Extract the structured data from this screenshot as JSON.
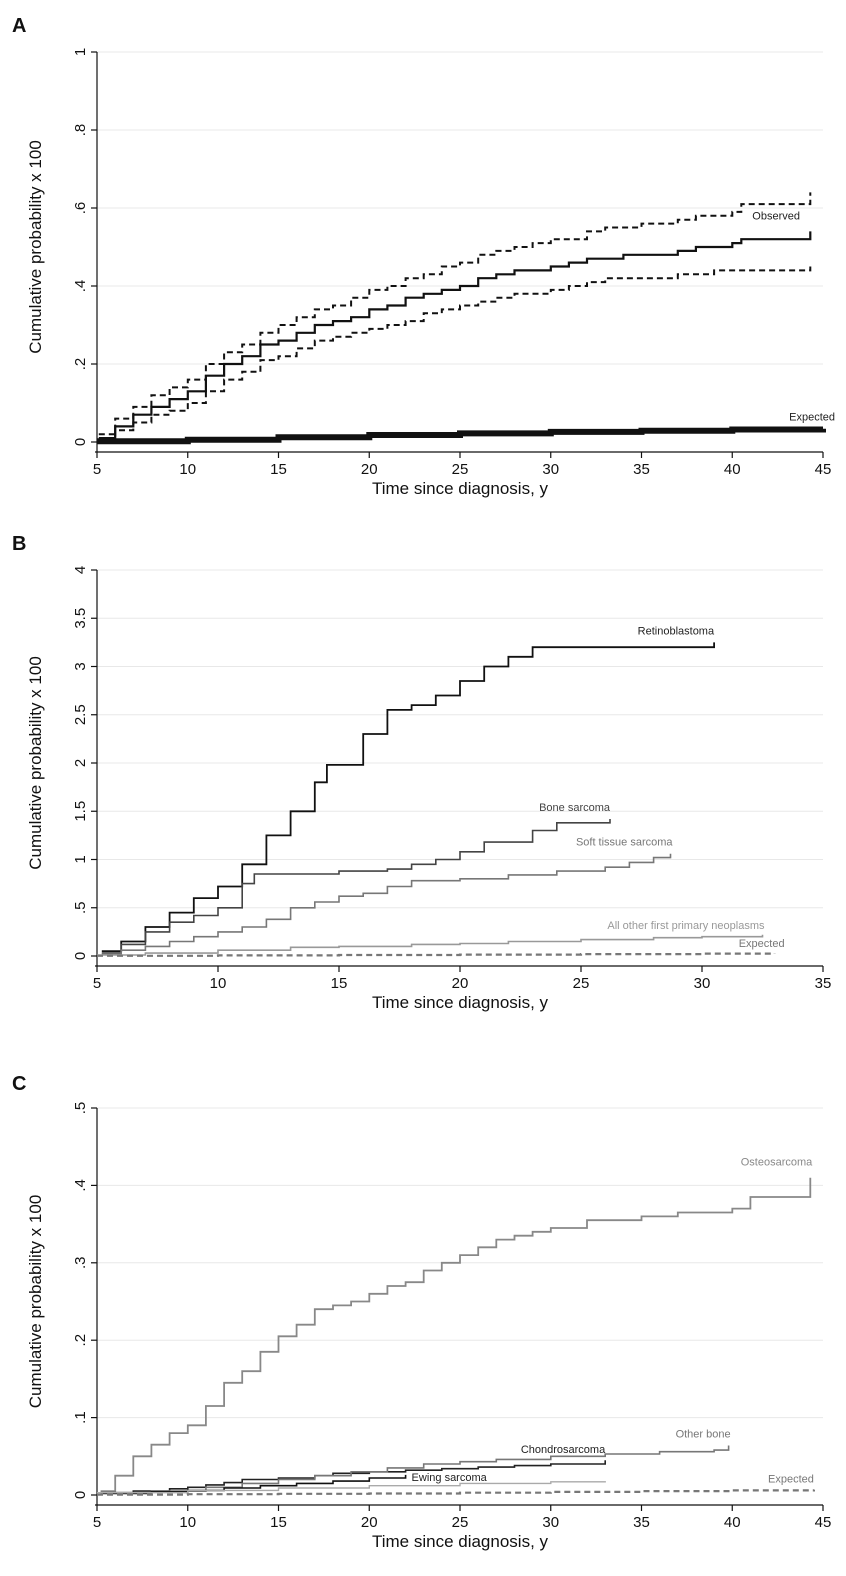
{
  "chart_data": [
    {
      "panel": "A",
      "type": "line",
      "xlabel": "Time since diagnosis, y",
      "ylabel": "Cumulative probability x 100",
      "xlim": [
        5,
        45
      ],
      "ylim": [
        0,
        1
      ],
      "xticks": [
        5,
        10,
        15,
        20,
        25,
        30,
        35,
        40,
        45
      ],
      "yticks": [
        0,
        0.2,
        0.4,
        0.6,
        0.8,
        1
      ],
      "ytick_labels": [
        "0",
        ".2",
        ".4",
        ".6",
        ".8",
        "1"
      ],
      "grid": true,
      "series": [
        {
          "name": "Observed",
          "color": "#111111",
          "style": "solid",
          "width": 2.2,
          "x": [
            5.1,
            6,
            7,
            8,
            9,
            10,
            11,
            12,
            13,
            14,
            15,
            16,
            17,
            18,
            19,
            20,
            21,
            22,
            23,
            24,
            25,
            26,
            27,
            28,
            29,
            30,
            31,
            32,
            33,
            34,
            35,
            36,
            37,
            38,
            39,
            40,
            40.5,
            41,
            42,
            43,
            44.3
          ],
          "y": [
            0.01,
            0.04,
            0.07,
            0.09,
            0.11,
            0.13,
            0.17,
            0.2,
            0.22,
            0.25,
            0.26,
            0.28,
            0.3,
            0.31,
            0.32,
            0.34,
            0.35,
            0.37,
            0.38,
            0.39,
            0.4,
            0.42,
            0.43,
            0.44,
            0.44,
            0.45,
            0.46,
            0.47,
            0.47,
            0.48,
            0.48,
            0.48,
            0.49,
            0.5,
            0.5,
            0.51,
            0.52,
            0.52,
            0.52,
            0.52,
            0.54
          ]
        },
        {
          "name": "",
          "color": "#111111",
          "style": "dashed",
          "width": 2,
          "x": [
            5.1,
            6,
            7,
            8,
            9,
            10,
            11,
            12,
            13,
            14,
            15,
            16,
            17,
            18,
            19,
            20,
            21,
            22,
            23,
            24,
            25,
            26,
            27,
            28,
            29,
            30,
            31,
            32,
            33,
            34,
            35,
            36,
            37,
            38,
            39,
            40,
            40.5,
            41,
            42,
            43,
            44.3
          ],
          "y": [
            0.02,
            0.06,
            0.09,
            0.12,
            0.14,
            0.16,
            0.2,
            0.23,
            0.25,
            0.28,
            0.3,
            0.32,
            0.34,
            0.35,
            0.37,
            0.39,
            0.4,
            0.42,
            0.43,
            0.45,
            0.46,
            0.48,
            0.49,
            0.5,
            0.51,
            0.52,
            0.52,
            0.54,
            0.55,
            0.55,
            0.56,
            0.56,
            0.57,
            0.58,
            0.58,
            0.59,
            0.61,
            0.61,
            0.61,
            0.61,
            0.64
          ]
        },
        {
          "name": "",
          "color": "#111111",
          "style": "dashed",
          "width": 2,
          "x": [
            5.1,
            6,
            7,
            8,
            9,
            10,
            11,
            12,
            13,
            14,
            15,
            16,
            17,
            18,
            19,
            20,
            21,
            22,
            23,
            24,
            25,
            26,
            27,
            28,
            29,
            30,
            31,
            32,
            33,
            34,
            35,
            36,
            37,
            38,
            39,
            40,
            40.5,
            41,
            42,
            43,
            44.3
          ],
          "y": [
            0.005,
            0.03,
            0.05,
            0.07,
            0.08,
            0.1,
            0.13,
            0.16,
            0.18,
            0.21,
            0.22,
            0.24,
            0.26,
            0.27,
            0.28,
            0.29,
            0.3,
            0.31,
            0.33,
            0.34,
            0.35,
            0.36,
            0.37,
            0.38,
            0.38,
            0.39,
            0.4,
            0.41,
            0.42,
            0.42,
            0.42,
            0.42,
            0.43,
            0.43,
            0.44,
            0.44,
            0.44,
            0.44,
            0.44,
            0.44,
            0.45
          ]
        },
        {
          "name": "Expected",
          "color": "#111111",
          "style": "solid",
          "width": 6,
          "x": [
            5,
            10,
            15,
            20,
            25,
            30,
            35,
            40,
            45
          ],
          "y": [
            0.002,
            0.006,
            0.012,
            0.018,
            0.022,
            0.026,
            0.029,
            0.032,
            0.034
          ]
        }
      ]
    },
    {
      "panel": "B",
      "type": "line",
      "xlabel": "Time since diagnosis, y",
      "ylabel": "Cumulative probability x 100",
      "xlim": [
        5,
        35
      ],
      "ylim": [
        0,
        4
      ],
      "xticks": [
        5,
        10,
        15,
        20,
        25,
        30,
        35
      ],
      "yticks": [
        0,
        0.5,
        1,
        1.5,
        2,
        2.5,
        3,
        3.5,
        4
      ],
      "ytick_labels": [
        "0",
        ".5",
        "1",
        "1.5",
        "2",
        "2.5",
        "3",
        "3.5",
        "4"
      ],
      "grid": true,
      "series": [
        {
          "name": "Retinoblastoma",
          "color": "#111111",
          "style": "solid",
          "width": 1.8,
          "x": [
            5.2,
            6,
            7,
            8,
            9,
            10,
            11,
            12,
            13,
            14,
            14.5,
            15,
            16,
            17,
            18,
            19,
            20,
            21,
            22,
            23,
            24,
            26,
            28,
            30,
            30.5
          ],
          "y": [
            0.05,
            0.15,
            0.3,
            0.45,
            0.6,
            0.72,
            0.95,
            1.25,
            1.5,
            1.8,
            1.98,
            1.98,
            2.3,
            2.55,
            2.6,
            2.7,
            2.85,
            3.0,
            3.1,
            3.2,
            3.2,
            3.2,
            3.2,
            3.2,
            3.25
          ]
        },
        {
          "name": "Bone sarcoma",
          "color": "#444444",
          "style": "solid",
          "width": 1.6,
          "x": [
            5.2,
            6,
            7,
            8,
            9,
            10,
            11,
            11.5,
            13,
            15,
            17,
            18,
            19,
            20,
            21,
            22,
            23,
            24,
            26,
            26.2
          ],
          "y": [
            0.03,
            0.12,
            0.25,
            0.35,
            0.42,
            0.5,
            0.75,
            0.85,
            0.85,
            0.88,
            0.9,
            0.95,
            1.0,
            1.08,
            1.18,
            1.18,
            1.3,
            1.38,
            1.38,
            1.42
          ]
        },
        {
          "name": "Soft tissue sarcoma",
          "color": "#777777",
          "style": "solid",
          "width": 1.6,
          "x": [
            5.2,
            6,
            7,
            8,
            9,
            10,
            11,
            12,
            13,
            14,
            15,
            16,
            17,
            18,
            20,
            22,
            24,
            26,
            27,
            28,
            28.7
          ],
          "y": [
            0.02,
            0.06,
            0.1,
            0.15,
            0.2,
            0.25,
            0.3,
            0.38,
            0.5,
            0.56,
            0.62,
            0.65,
            0.72,
            0.78,
            0.8,
            0.84,
            0.88,
            0.92,
            0.97,
            1.02,
            1.06
          ]
        },
        {
          "name": "All other first primary neoplasms",
          "color": "#999999",
          "style": "solid",
          "width": 1.6,
          "x": [
            5,
            7,
            10,
            13,
            15,
            18,
            20,
            22,
            25,
            28,
            30,
            32.5
          ],
          "y": [
            0.01,
            0.03,
            0.06,
            0.09,
            0.1,
            0.12,
            0.13,
            0.15,
            0.17,
            0.19,
            0.2,
            0.22
          ]
        },
        {
          "name": "Expected",
          "color": "#777777",
          "style": "dashed",
          "width": 2.2,
          "x": [
            5,
            10,
            15,
            20,
            25,
            30,
            33
          ],
          "y": [
            0.002,
            0.006,
            0.01,
            0.015,
            0.02,
            0.025,
            0.03
          ]
        }
      ]
    },
    {
      "panel": "C",
      "type": "line",
      "xlabel": "Time since diagnosis, y",
      "ylabel": "Cumulative probability x 100",
      "xlim": [
        5,
        45
      ],
      "ylim": [
        0,
        0.5
      ],
      "xticks": [
        5,
        10,
        15,
        20,
        25,
        30,
        35,
        40,
        45
      ],
      "yticks": [
        0,
        0.1,
        0.2,
        0.3,
        0.4,
        0.5
      ],
      "ytick_labels": [
        "0",
        ".1",
        ".2",
        ".3",
        ".4",
        ".5"
      ],
      "grid": true,
      "series": [
        {
          "name": "Osteosarcoma",
          "color": "#888888",
          "style": "solid",
          "width": 1.8,
          "x": [
            5.2,
            6,
            7,
            8,
            9,
            10,
            11,
            12,
            13,
            14,
            15,
            16,
            17,
            18,
            19,
            20,
            21,
            22,
            23,
            24,
            25,
            26,
            27,
            28,
            29,
            30,
            31,
            32,
            33,
            34,
            35,
            36,
            37,
            38,
            39,
            40,
            41,
            42,
            43,
            44,
            44.3
          ],
          "y": [
            0.005,
            0.025,
            0.05,
            0.065,
            0.08,
            0.09,
            0.115,
            0.145,
            0.16,
            0.185,
            0.205,
            0.22,
            0.24,
            0.245,
            0.25,
            0.26,
            0.27,
            0.275,
            0.29,
            0.3,
            0.31,
            0.32,
            0.33,
            0.335,
            0.34,
            0.345,
            0.345,
            0.355,
            0.355,
            0.355,
            0.36,
            0.36,
            0.365,
            0.365,
            0.365,
            0.37,
            0.385,
            0.385,
            0.385,
            0.385,
            0.41
          ]
        },
        {
          "name": "Chondrosarcoma",
          "color": "#222222",
          "style": "solid",
          "width": 1.6,
          "x": [
            5.2,
            7,
            9,
            10,
            11,
            12,
            13,
            15,
            17,
            18,
            20,
            22,
            24,
            26,
            28,
            30,
            31,
            33
          ],
          "y": [
            0.003,
            0.005,
            0.008,
            0.01,
            0.013,
            0.016,
            0.02,
            0.022,
            0.025,
            0.028,
            0.03,
            0.032,
            0.034,
            0.036,
            0.038,
            0.04,
            0.04,
            0.045
          ]
        },
        {
          "name": "Other bone",
          "color": "#777777",
          "style": "solid",
          "width": 1.6,
          "x": [
            5.2,
            8,
            11,
            13,
            15,
            17,
            19,
            21,
            23,
            25,
            27,
            30,
            33,
            36,
            39,
            39.8
          ],
          "y": [
            0.003,
            0.005,
            0.01,
            0.015,
            0.02,
            0.025,
            0.03,
            0.035,
            0.04,
            0.043,
            0.046,
            0.05,
            0.053,
            0.056,
            0.058,
            0.064
          ]
        },
        {
          "name": "Ewing sarcoma",
          "color": "#111111",
          "style": "solid",
          "width": 1.6,
          "x": [
            5.2,
            8,
            10,
            12,
            14,
            16,
            18,
            20,
            22
          ],
          "y": [
            0.002,
            0.004,
            0.006,
            0.009,
            0.012,
            0.015,
            0.018,
            0.022,
            0.026
          ]
        },
        {
          "name": "",
          "color": "#aaaaaa",
          "style": "solid",
          "width": 1.4,
          "x": [
            5,
            10,
            15,
            20,
            25,
            30,
            33
          ],
          "y": [
            0.003,
            0.006,
            0.009,
            0.012,
            0.015,
            0.017,
            0.018
          ]
        },
        {
          "name": "Expected",
          "color": "#777777",
          "style": "dashed",
          "width": 2.2,
          "x": [
            5,
            10,
            15,
            20,
            25,
            30,
            35,
            40,
            44.5
          ],
          "y": [
            0.0005,
            0.001,
            0.0015,
            0.002,
            0.003,
            0.004,
            0.005,
            0.006,
            0.007
          ]
        }
      ]
    }
  ]
}
